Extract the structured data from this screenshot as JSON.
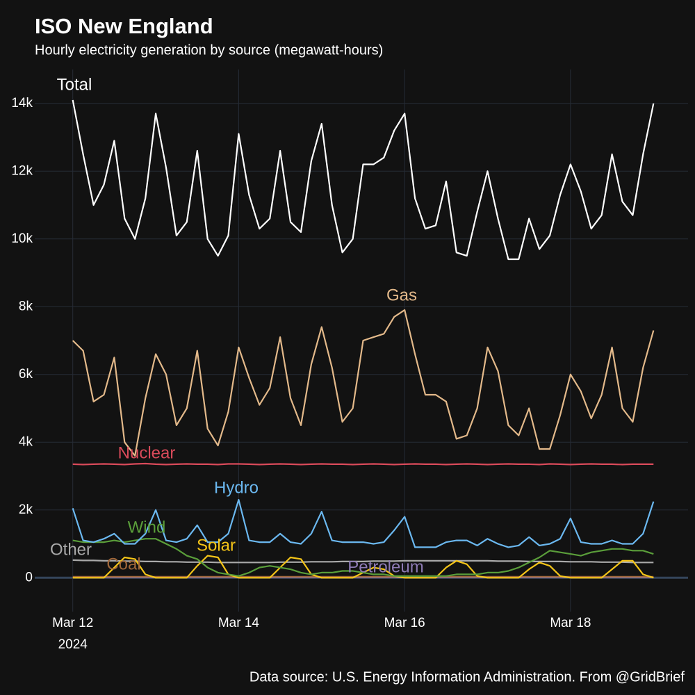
{
  "chart_data": {
    "type": "line",
    "title": "ISO New England",
    "subtitle": "Hourly electricity generation by source (megawatt-hours)",
    "source": "Data source: U.S. Energy Information Administration. From @GridBrief",
    "x": [
      "2024-03-12T00:00",
      "2024-03-12T03:00",
      "2024-03-12T06:00",
      "2024-03-12T09:00",
      "2024-03-12T12:00",
      "2024-03-12T15:00",
      "2024-03-12T18:00",
      "2024-03-12T21:00",
      "2024-03-13T00:00",
      "2024-03-13T03:00",
      "2024-03-13T06:00",
      "2024-03-13T09:00",
      "2024-03-13T12:00",
      "2024-03-13T15:00",
      "2024-03-13T18:00",
      "2024-03-13T21:00",
      "2024-03-14T00:00",
      "2024-03-14T03:00",
      "2024-03-14T06:00",
      "2024-03-14T09:00",
      "2024-03-14T12:00",
      "2024-03-14T15:00",
      "2024-03-14T18:00",
      "2024-03-14T21:00",
      "2024-03-15T00:00",
      "2024-03-15T03:00",
      "2024-03-15T06:00",
      "2024-03-15T09:00",
      "2024-03-15T12:00",
      "2024-03-15T15:00",
      "2024-03-15T18:00",
      "2024-03-15T21:00",
      "2024-03-16T00:00",
      "2024-03-16T03:00",
      "2024-03-16T06:00",
      "2024-03-16T09:00",
      "2024-03-16T12:00",
      "2024-03-16T15:00",
      "2024-03-16T18:00",
      "2024-03-16T21:00",
      "2024-03-17T00:00",
      "2024-03-17T03:00",
      "2024-03-17T06:00",
      "2024-03-17T09:00",
      "2024-03-17T12:00",
      "2024-03-17T15:00",
      "2024-03-17T18:00",
      "2024-03-17T21:00",
      "2024-03-18T00:00",
      "2024-03-18T03:00",
      "2024-03-18T06:00",
      "2024-03-18T09:00",
      "2024-03-18T12:00",
      "2024-03-18T15:00",
      "2024-03-18T18:00",
      "2024-03-18T21:00",
      "2024-03-19T00:00"
    ],
    "xlim": [
      "2024-03-11T13:00",
      "2024-03-19T10:00"
    ],
    "xticks": [
      {
        "value": "2024-03-12T00:00",
        "label": "Mar 12"
      },
      {
        "value": "2024-03-14T00:00",
        "label": "Mar 14"
      },
      {
        "value": "2024-03-16T00:00",
        "label": "Mar 16"
      },
      {
        "value": "2024-03-18T00:00",
        "label": "Mar 18"
      }
    ],
    "xtick_year": "2024",
    "ylim": [
      -1000,
      15000
    ],
    "yticks": [
      0,
      {
        "value": 2000,
        "label": "2k"
      },
      {
        "value": 4000,
        "label": "4k"
      },
      {
        "value": 6000,
        "label": "6k"
      },
      {
        "value": 8000,
        "label": "8k"
      },
      {
        "value": 10000,
        "label": "10k"
      },
      {
        "value": 12000,
        "label": "12k"
      },
      {
        "value": 14000,
        "label": "14k"
      }
    ],
    "grid": true,
    "series": [
      {
        "name": "Total",
        "color": "#ffffff",
        "values": [
          14100,
          12500,
          11000,
          11600,
          12900,
          10600,
          10000,
          11200,
          13700,
          12100,
          10100,
          10500,
          12600,
          10000,
          9500,
          10100,
          13100,
          11300,
          10300,
          10600,
          12600,
          10500,
          10200,
          12300,
          13400,
          11000,
          9600,
          10000,
          12200,
          12200,
          12400,
          13200,
          13700,
          11200,
          10300,
          10400,
          11700,
          9600,
          9500,
          10800,
          12000,
          10600,
          9400,
          9400,
          10600,
          9700,
          10100,
          11300,
          12200,
          11400,
          10300,
          10700,
          12500,
          11100,
          10700,
          12500,
          14000
        ]
      },
      {
        "name": "Gas",
        "color": "#e3b98a",
        "values": [
          7000,
          6700,
          5200,
          5400,
          6500,
          4000,
          3600,
          5300,
          6600,
          6000,
          4500,
          5000,
          6700,
          4400,
          3900,
          4900,
          6800,
          5900,
          5100,
          5600,
          7100,
          5300,
          4500,
          6300,
          7400,
          6200,
          4600,
          5000,
          7000,
          7100,
          7200,
          7700,
          7900,
          6600,
          5400,
          5400,
          5200,
          4100,
          4200,
          5000,
          6800,
          6100,
          4500,
          4200,
          5000,
          3800,
          3800,
          4800,
          6000,
          5500,
          4700,
          5400,
          6800,
          5000,
          4600,
          6200,
          7300
        ]
      },
      {
        "name": "Nuclear",
        "color": "#d94a5a",
        "values": [
          3350,
          3340,
          3350,
          3360,
          3350,
          3340,
          3360,
          3370,
          3350,
          3340,
          3350,
          3360,
          3350,
          3350,
          3340,
          3360,
          3360,
          3350,
          3340,
          3350,
          3360,
          3350,
          3340,
          3350,
          3360,
          3350,
          3350,
          3340,
          3350,
          3360,
          3350,
          3340,
          3350,
          3360,
          3350,
          3350,
          3340,
          3350,
          3360,
          3350,
          3340,
          3350,
          3360,
          3350,
          3350,
          3340,
          3360,
          3350,
          3340,
          3350,
          3360,
          3350,
          3350,
          3340,
          3350,
          3350,
          3350
        ]
      },
      {
        "name": "Hydro",
        "color": "#6bb8f0",
        "values": [
          2050,
          1100,
          1050,
          1150,
          1300,
          1000,
          1000,
          1300,
          2000,
          1100,
          1050,
          1150,
          1550,
          1050,
          1050,
          1300,
          2300,
          1100,
          1050,
          1050,
          1300,
          1050,
          1000,
          1300,
          1950,
          1100,
          1050,
          1050,
          1050,
          1000,
          1050,
          1400,
          1800,
          900,
          900,
          900,
          1050,
          1100,
          1100,
          950,
          1150,
          1000,
          900,
          950,
          1200,
          950,
          1000,
          1150,
          1750,
          1050,
          1000,
          1000,
          1100,
          1000,
          1000,
          1300,
          2250
        ]
      },
      {
        "name": "Wind",
        "color": "#5a9e3a",
        "values": [
          1100,
          1050,
          1050,
          1050,
          1100,
          1050,
          1100,
          1150,
          1150,
          1000,
          850,
          650,
          550,
          300,
          150,
          100,
          50,
          150,
          300,
          350,
          300,
          250,
          150,
          100,
          150,
          150,
          200,
          200,
          150,
          100,
          100,
          50,
          50,
          50,
          50,
          50,
          50,
          100,
          100,
          100,
          150,
          150,
          200,
          300,
          450,
          600,
          800,
          750,
          700,
          650,
          750,
          800,
          850,
          850,
          800,
          800,
          700
        ]
      },
      {
        "name": "Other",
        "color": "#aaaaaa",
        "values": [
          520,
          510,
          510,
          500,
          500,
          490,
          490,
          480,
          480,
          470,
          470,
          460,
          460,
          460,
          450,
          450,
          450,
          450,
          450,
          450,
          460,
          460,
          460,
          470,
          470,
          470,
          480,
          480,
          480,
          490,
          490,
          490,
          500,
          500,
          500,
          500,
          500,
          500,
          500,
          500,
          500,
          490,
          490,
          490,
          480,
          480,
          480,
          480,
          470,
          470,
          470,
          460,
          460,
          460,
          450,
          450,
          450
        ]
      },
      {
        "name": "Solar",
        "color": "#f5c518",
        "values": [
          0,
          0,
          0,
          0,
          300,
          600,
          550,
          100,
          0,
          0,
          0,
          0,
          350,
          650,
          600,
          100,
          0,
          0,
          0,
          0,
          300,
          600,
          550,
          100,
          0,
          0,
          0,
          0,
          150,
          300,
          250,
          50,
          0,
          0,
          0,
          0,
          300,
          500,
          400,
          50,
          0,
          0,
          0,
          0,
          250,
          450,
          350,
          50,
          0,
          0,
          0,
          0,
          250,
          500,
          500,
          100,
          0
        ]
      },
      {
        "name": "Coal",
        "color": "#a0673a",
        "values": [
          30,
          30,
          30,
          30,
          30,
          30,
          30,
          30,
          30,
          30,
          30,
          30,
          30,
          30,
          30,
          30,
          30,
          30,
          30,
          30,
          30,
          30,
          30,
          30,
          30,
          30,
          30,
          30,
          30,
          30,
          30,
          30,
          30,
          30,
          30,
          30,
          30,
          30,
          30,
          30,
          30,
          30,
          30,
          30,
          30,
          30,
          30,
          30,
          30,
          30,
          30,
          30,
          30,
          30,
          30,
          30,
          30
        ]
      },
      {
        "name": "Petroleum",
        "color": "#8e7bb5",
        "values": [
          10,
          10,
          10,
          10,
          10,
          10,
          10,
          10,
          10,
          10,
          10,
          10,
          10,
          10,
          10,
          10,
          10,
          10,
          10,
          10,
          10,
          10,
          10,
          10,
          10,
          10,
          10,
          10,
          10,
          10,
          10,
          10,
          10,
          10,
          10,
          10,
          10,
          10,
          10,
          10,
          10,
          10,
          10,
          10,
          10,
          10,
          10,
          10,
          10,
          10,
          10,
          10,
          10,
          10,
          10,
          10,
          10
        ]
      }
    ]
  }
}
